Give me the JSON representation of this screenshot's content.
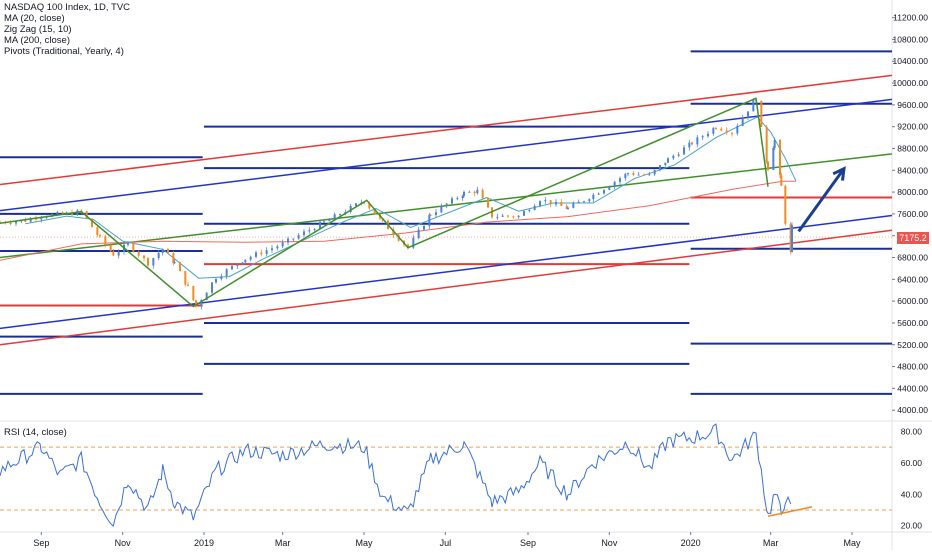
{
  "chart_data": {
    "type": "line",
    "legend": {
      "title": "NASDAQ 100 Index, 1D, TVC",
      "indicators": [
        "MA (20, close)",
        "Zig Zag (15, 10)",
        "MA (200, close)",
        "Pivots (Traditional, Yearly, 4)"
      ]
    },
    "rsi_label": "RSI (14, close)",
    "price_axis": {
      "ticks": [
        "11200.00",
        "10800.00",
        "10400.00",
        "10000.00",
        "9600.00",
        "9200.00",
        "8800.00",
        "8400.00",
        "8000.00",
        "7600.00",
        "7200.00",
        "6800.00",
        "6400.00",
        "6000.00",
        "5600.00",
        "5200.00",
        "4800.00",
        "4400.00",
        "4000.00"
      ],
      "range": [
        3820,
        11450
      ]
    },
    "rsi_axis": {
      "ticks": [
        "80.00",
        "60.00",
        "40.00",
        "20.00"
      ],
      "range": [
        16,
        86
      ],
      "bands": [
        70,
        30
      ]
    },
    "time_axis": [
      "Sep",
      "Nov",
      "2019",
      "Mar",
      "May",
      "Jul",
      "Sep",
      "Nov",
      "2020",
      "Mar",
      "May"
    ],
    "last_price": "7175.2",
    "colors": {
      "up": "#4a83d8",
      "down": "#f08a24",
      "ma20": "#4aa3c4",
      "ma200": "#ef6a5e",
      "zigzag": "#3f8f2a",
      "pivot_blue": "#1a2e99",
      "pivot_red": "#e53935",
      "rsi": "#3a6fd8",
      "arrow": "#1a3f8f"
    },
    "price_series": [
      [
        "2018-08-01",
        7450
      ],
      [
        "2018-08-20",
        7480
      ],
      [
        "2018-09-01",
        7570
      ],
      [
        "2018-09-20",
        7600
      ],
      [
        "2018-10-01",
        7640
      ],
      [
        "2018-10-15",
        7150
      ],
      [
        "2018-10-25",
        6860
      ],
      [
        "2018-11-05",
        7040
      ],
      [
        "2018-11-20",
        6700
      ],
      [
        "2018-12-01",
        6960
      ],
      [
        "2018-12-10",
        6700
      ],
      [
        "2018-12-20",
        6250
      ],
      [
        "2018-12-26",
        5900
      ],
      [
        "2019-01-10",
        6440
      ],
      [
        "2019-02-01",
        6780
      ],
      [
        "2019-03-01",
        7050
      ],
      [
        "2019-04-01",
        7450
      ],
      [
        "2019-05-01",
        7840
      ],
      [
        "2019-05-15",
        7440
      ],
      [
        "2019-06-03",
        6980
      ],
      [
        "2019-06-20",
        7600
      ],
      [
        "2019-07-15",
        7980
      ],
      [
        "2019-07-25",
        8020
      ],
      [
        "2019-08-05",
        7560
      ],
      [
        "2019-08-25",
        7560
      ],
      [
        "2019-09-10",
        7870
      ],
      [
        "2019-10-01",
        7700
      ],
      [
        "2019-10-20",
        7950
      ],
      [
        "2019-11-15",
        8350
      ],
      [
        "2019-12-01",
        8300
      ],
      [
        "2019-12-15",
        8600
      ],
      [
        "2020-01-02",
        8900
      ],
      [
        "2020-01-20",
        9200
      ],
      [
        "2020-02-01",
        9100
      ],
      [
        "2020-02-19",
        9720
      ],
      [
        "2020-02-28",
        8440
      ],
      [
        "2020-03-04",
        8950
      ],
      [
        "2020-03-09",
        8100
      ],
      [
        "2020-03-12",
        7450
      ],
      [
        "2020-03-16",
        6880
      ],
      [
        "2020-03-17",
        7350
      ],
      [
        "2020-03-20",
        7180
      ]
    ],
    "ma20_series": [
      [
        "2018-08-20",
        7420
      ],
      [
        "2018-09-20",
        7560
      ],
      [
        "2018-10-10",
        7500
      ],
      [
        "2018-11-01",
        7100
      ],
      [
        "2018-12-01",
        6950
      ],
      [
        "2018-12-28",
        6420
      ],
      [
        "2019-01-20",
        6450
      ],
      [
        "2019-02-15",
        6780
      ],
      [
        "2019-03-15",
        7100
      ],
      [
        "2019-04-15",
        7450
      ],
      [
        "2019-05-10",
        7700
      ],
      [
        "2019-06-05",
        7350
      ],
      [
        "2019-07-01",
        7600
      ],
      [
        "2019-08-01",
        7900
      ],
      [
        "2019-08-25",
        7650
      ],
      [
        "2019-09-20",
        7800
      ],
      [
        "2019-10-20",
        7800
      ],
      [
        "2019-11-20",
        8250
      ],
      [
        "2019-12-20",
        8500
      ],
      [
        "2020-01-20",
        9000
      ],
      [
        "2020-02-20",
        9380
      ],
      [
        "2020-03-01",
        9100
      ],
      [
        "2020-03-12",
        8620
      ],
      [
        "2020-03-20",
        8200
      ]
    ],
    "ma200_series": [
      [
        "2018-08-01",
        6750
      ],
      [
        "2018-10-01",
        7050
      ],
      [
        "2018-12-01",
        7100
      ],
      [
        "2019-02-01",
        7080
      ],
      [
        "2019-04-01",
        7100
      ],
      [
        "2019-06-01",
        7250
      ],
      [
        "2019-08-01",
        7450
      ],
      [
        "2019-10-01",
        7550
      ],
      [
        "2019-12-01",
        7750
      ],
      [
        "2020-02-01",
        8050
      ],
      [
        "2020-03-10",
        8200
      ],
      [
        "2020-03-20",
        8200
      ]
    ],
    "zigzag": [
      [
        "2018-08-01",
        7430
      ],
      [
        "2018-10-01",
        7640
      ],
      [
        "2018-12-24",
        5900
      ],
      [
        "2019-05-03",
        7850
      ],
      [
        "2019-06-03",
        6980
      ],
      [
        "2020-02-19",
        9720
      ],
      [
        "2020-02-28",
        8100
      ]
    ],
    "trend_lines": [
      {
        "color": "red",
        "from": [
          "2018-08-01",
          8140
        ],
        "to": [
          "2020-05-31",
          10140
        ]
      },
      {
        "color": "blue",
        "from": [
          "2018-08-01",
          7660
        ],
        "to": [
          "2020-05-31",
          9700
        ]
      },
      {
        "color": "green",
        "from": [
          "2018-08-01",
          6800
        ],
        "to": [
          "2020-05-31",
          8700
        ]
      },
      {
        "color": "blue",
        "from": [
          "2018-08-01",
          5500
        ],
        "to": [
          "2020-05-31",
          7570
        ]
      },
      {
        "color": "red",
        "from": [
          "2018-08-01",
          5200
        ],
        "to": [
          "2020-05-31",
          7300
        ]
      }
    ],
    "pivot_levels": [
      {
        "color": "blue",
        "from": "2018-08-01",
        "to": "2018-12-31",
        "value": 8640
      },
      {
        "color": "blue",
        "from": "2018-08-01",
        "to": "2018-12-31",
        "value": 7600
      },
      {
        "color": "blue",
        "from": "2018-08-01",
        "to": "2018-12-31",
        "value": 6920
      },
      {
        "color": "red",
        "from": "2018-08-01",
        "to": "2018-12-31",
        "value": 5920
      },
      {
        "color": "blue",
        "from": "2018-08-01",
        "to": "2018-12-31",
        "value": 5350
      },
      {
        "color": "blue",
        "from": "2018-08-01",
        "to": "2018-12-31",
        "value": 4300
      },
      {
        "color": "blue",
        "from": "2019-01-01",
        "to": "2019-12-31",
        "value": 9200
      },
      {
        "color": "blue",
        "from": "2019-01-01",
        "to": "2019-12-31",
        "value": 8440
      },
      {
        "color": "blue",
        "from": "2019-01-01",
        "to": "2019-12-31",
        "value": 7420
      },
      {
        "color": "red",
        "from": "2019-01-01",
        "to": "2019-12-31",
        "value": 6680
      },
      {
        "color": "blue",
        "from": "2019-01-01",
        "to": "2019-12-31",
        "value": 5600
      },
      {
        "color": "blue",
        "from": "2019-01-01",
        "to": "2019-12-31",
        "value": 4850
      },
      {
        "color": "blue",
        "from": "2020-01-01",
        "to": "2020-05-31",
        "value": 10580
      },
      {
        "color": "blue",
        "from": "2020-01-01",
        "to": "2020-05-31",
        "value": 9620
      },
      {
        "color": "red",
        "from": "2020-01-01",
        "to": "2020-05-31",
        "value": 7900
      },
      {
        "color": "blue",
        "from": "2020-01-01",
        "to": "2020-05-31",
        "value": 6960
      },
      {
        "color": "blue",
        "from": "2020-01-01",
        "to": "2020-05-31",
        "value": 5220
      },
      {
        "color": "blue",
        "from": "2020-01-01",
        "to": "2020-05-31",
        "value": 4300
      }
    ],
    "arrow": {
      "from": [
        "2020-03-22",
        7280
      ],
      "to": [
        "2020-04-25",
        8430
      ]
    },
    "rsi_series": [
      [
        "2018-08-01",
        55
      ],
      [
        "2018-08-15",
        62
      ],
      [
        "2018-09-01",
        70
      ],
      [
        "2018-09-15",
        52
      ],
      [
        "2018-10-01",
        62
      ],
      [
        "2018-10-15",
        35
      ],
      [
        "2018-10-25",
        22
      ],
      [
        "2018-11-05",
        50
      ],
      [
        "2018-11-20",
        30
      ],
      [
        "2018-12-01",
        55
      ],
      [
        "2018-12-10",
        35
      ],
      [
        "2018-12-24",
        25
      ],
      [
        "2019-01-10",
        55
      ],
      [
        "2019-02-01",
        68
      ],
      [
        "2019-03-01",
        65
      ],
      [
        "2019-04-01",
        72
      ],
      [
        "2019-05-01",
        70
      ],
      [
        "2019-05-15",
        38
      ],
      [
        "2019-06-03",
        28
      ],
      [
        "2019-06-20",
        62
      ],
      [
        "2019-07-15",
        72
      ],
      [
        "2019-08-05",
        35
      ],
      [
        "2019-08-25",
        42
      ],
      [
        "2019-09-10",
        60
      ],
      [
        "2019-10-01",
        40
      ],
      [
        "2019-10-20",
        60
      ],
      [
        "2019-11-15",
        73
      ],
      [
        "2019-12-01",
        56
      ],
      [
        "2019-12-15",
        74
      ],
      [
        "2020-01-02",
        76
      ],
      [
        "2020-01-20",
        80
      ],
      [
        "2020-02-01",
        62
      ],
      [
        "2020-02-19",
        78
      ],
      [
        "2020-02-28",
        26
      ],
      [
        "2020-03-04",
        40
      ],
      [
        "2020-03-09",
        28
      ],
      [
        "2020-03-12",
        38
      ],
      [
        "2020-03-16",
        30
      ],
      [
        "2020-03-18",
        38
      ]
    ],
    "rsi_divergence": {
      "from": [
        "2020-02-28",
        26
      ],
      "to": [
        "2020-04-01",
        32
      ]
    }
  }
}
